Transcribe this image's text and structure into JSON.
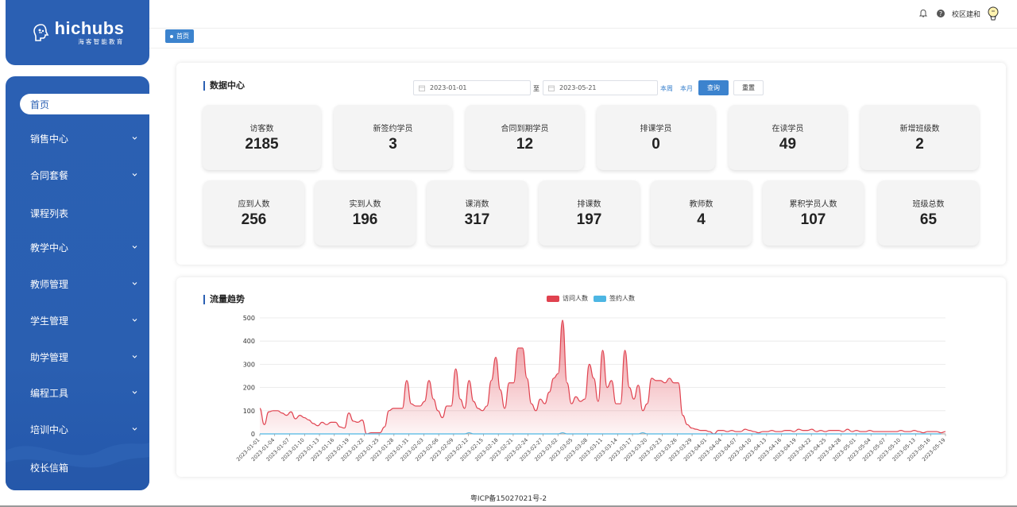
{
  "brand": {
    "name": "hichubs",
    "tagline": "海客智能教育"
  },
  "sidebar": {
    "items": [
      {
        "label": "首页",
        "active": true,
        "has_submenu": false
      },
      {
        "label": "销售中心",
        "active": false,
        "has_submenu": true
      },
      {
        "label": "合同套餐",
        "active": false,
        "has_submenu": true
      },
      {
        "label": "课程列表",
        "active": false,
        "has_submenu": false
      },
      {
        "label": "教学中心",
        "active": false,
        "has_submenu": true
      },
      {
        "label": "教师管理",
        "active": false,
        "has_submenu": true
      },
      {
        "label": "学生管理",
        "active": false,
        "has_submenu": true
      },
      {
        "label": "助学管理",
        "active": false,
        "has_submenu": true
      },
      {
        "label": "编程工具",
        "active": false,
        "has_submenu": true
      },
      {
        "label": "培训中心",
        "active": false,
        "has_submenu": true
      },
      {
        "label": "校长信箱",
        "active": false,
        "has_submenu": false
      }
    ]
  },
  "header": {
    "user": "校区建和",
    "icons": [
      "bell-icon",
      "help-icon"
    ]
  },
  "breadcrumb": {
    "tag": "首页"
  },
  "data_center": {
    "title": "数据中心",
    "start_date": "2023-01-01",
    "to_label": "至",
    "end_date": "2023-05-21",
    "links": [
      "本周",
      "本月"
    ],
    "query_label": "查询",
    "reset_label": "重置",
    "stats_row1": [
      {
        "label": "访客数",
        "value": "2185"
      },
      {
        "label": "新签约学员",
        "value": "3"
      },
      {
        "label": "合同到期学员",
        "value": "12"
      },
      {
        "label": "排课学员",
        "value": "0"
      },
      {
        "label": "在读学员",
        "value": "49"
      },
      {
        "label": "新增班级数",
        "value": "2"
      }
    ],
    "stats_row2": [
      {
        "label": "应到人数",
        "value": "256"
      },
      {
        "label": "实到人数",
        "value": "196"
      },
      {
        "label": "课消数",
        "value": "317"
      },
      {
        "label": "排课数",
        "value": "197"
      },
      {
        "label": "教师数",
        "value": "4"
      },
      {
        "label": "累积学员人数",
        "value": "107"
      },
      {
        "label": "班级总数",
        "value": "65"
      }
    ]
  },
  "traffic": {
    "title": "流量趋势"
  },
  "colors": {
    "primary": "#2b60b3",
    "visit": "#e0424f",
    "sign": "#4db6e3"
  },
  "chart_data": {
    "type": "area",
    "title": "流量趋势",
    "xlabel": "",
    "ylabel": "",
    "ylim": [
      0,
      500
    ],
    "yticks": [
      0,
      100,
      200,
      300,
      400,
      500
    ],
    "legend_position": "top",
    "grid": true,
    "x_tick_labels": [
      "2023-01-01",
      "2023-01-04",
      "2023-01-07",
      "2023-01-10",
      "2023-01-13",
      "2023-01-16",
      "2023-01-19",
      "2023-01-22",
      "2023-01-25",
      "2023-01-28",
      "2023-01-31",
      "2023-02-03",
      "2023-02-06",
      "2023-02-09",
      "2023-02-12",
      "2023-02-15",
      "2023-02-18",
      "2023-02-21",
      "2023-02-24",
      "2023-02-27",
      "2023-03-02",
      "2023-03-05",
      "2023-03-08",
      "2023-03-11",
      "2023-03-14",
      "2023-03-17",
      "2023-03-20",
      "2023-03-23",
      "2023-03-26",
      "2023-03-29",
      "2023-04-01",
      "2023-04-04",
      "2023-04-07",
      "2023-04-10",
      "2023-04-13",
      "2023-04-16",
      "2023-04-19",
      "2023-04-22",
      "2023-04-25",
      "2023-04-28",
      "2023-05-01",
      "2023-05-04",
      "2023-05-07",
      "2023-05-10",
      "2023-05-13",
      "2023-05-16",
      "2023-05-19"
    ],
    "series": [
      {
        "name": "访问人数",
        "color": "#e0424f",
        "values": [
          110,
          40,
          95,
          100,
          100,
          90,
          80,
          95,
          65,
          80,
          70,
          60,
          45,
          35,
          50,
          40,
          50,
          50,
          30,
          25,
          90,
          55,
          50,
          60,
          0,
          5,
          5,
          5,
          30,
          100,
          110,
          110,
          110,
          230,
          130,
          120,
          120,
          140,
          230,
          150,
          100,
          70,
          120,
          120,
          280,
          150,
          110,
          230,
          140,
          110,
          100,
          120,
          230,
          330,
          190,
          110,
          220,
          220,
          370,
          370,
          240,
          130,
          100,
          150,
          130,
          180,
          240,
          260,
          490,
          220,
          130,
          160,
          140,
          150,
          300,
          240,
          140,
          360,
          200,
          230,
          130,
          130,
          360,
          200,
          150,
          210,
          100,
          130,
          240,
          230,
          230,
          220,
          240,
          220,
          220,
          80,
          40,
          25,
          20,
          15,
          15,
          10,
          0,
          15,
          15,
          10,
          15,
          10,
          10,
          20,
          15,
          10,
          5,
          10,
          10,
          15,
          10,
          10,
          15,
          15,
          10,
          20,
          15,
          15,
          20,
          10,
          15,
          10,
          15,
          15,
          15,
          10,
          20,
          10,
          15,
          10,
          10,
          15,
          10,
          10,
          10,
          10,
          10,
          10,
          15,
          10,
          10,
          15,
          10,
          5,
          10,
          10,
          10,
          5,
          10
        ]
      },
      {
        "name": "签约人数",
        "color": "#4db6e3",
        "values": [
          0,
          0,
          0,
          0,
          0,
          0,
          0,
          0,
          0,
          0,
          0,
          0,
          0,
          0,
          0,
          0,
          0,
          0,
          0,
          0,
          0,
          0,
          0,
          0,
          0,
          0,
          0,
          0,
          0,
          0,
          0,
          0,
          0,
          0,
          0,
          0,
          0,
          0,
          0,
          0,
          0,
          0,
          0,
          0,
          0,
          0,
          0,
          5,
          0,
          0,
          0,
          0,
          0,
          0,
          0,
          0,
          0,
          0,
          0,
          0,
          0,
          0,
          0,
          0,
          0,
          0,
          0,
          0,
          5,
          0,
          0,
          0,
          0,
          0,
          0,
          0,
          0,
          0,
          0,
          0,
          0,
          0,
          0,
          0,
          0,
          0,
          5,
          0,
          0,
          0,
          0,
          0,
          0,
          0,
          0,
          0,
          0,
          0,
          0,
          0,
          0,
          0,
          0,
          0,
          0,
          0,
          0,
          0,
          0,
          0,
          0,
          0,
          0,
          0,
          0,
          0,
          0,
          0,
          0,
          0,
          0,
          0,
          0,
          0,
          0,
          0,
          0,
          0,
          0,
          0,
          0,
          0,
          0,
          0,
          0,
          0,
          0,
          0,
          0,
          0,
          0,
          0,
          0,
          0,
          0,
          0,
          0,
          0,
          0,
          0,
          0,
          0,
          0,
          0
        ]
      }
    ]
  },
  "footer": {
    "icp": "粤ICP备15027021号-2"
  }
}
